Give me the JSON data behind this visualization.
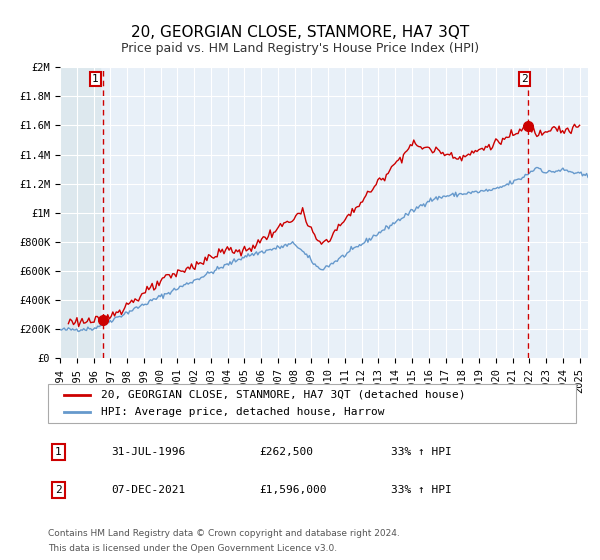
{
  "title": "20, GEORGIAN CLOSE, STANMORE, HA7 3QT",
  "subtitle": "Price paid vs. HM Land Registry's House Price Index (HPI)",
  "red_label": "20, GEORGIAN CLOSE, STANMORE, HA7 3QT (detached house)",
  "blue_label": "HPI: Average price, detached house, Harrow",
  "annotation1_label": "1",
  "annotation1_date": "31-JUL-1996",
  "annotation1_price": "£262,500",
  "annotation1_hpi": "33% ↑ HPI",
  "annotation1_date_num": 1996.58,
  "annotation1_value": 262500,
  "annotation2_label": "2",
  "annotation2_date": "07-DEC-2021",
  "annotation2_price": "£1,596,000",
  "annotation2_hpi": "33% ↑ HPI",
  "annotation2_date_num": 2021.93,
  "annotation2_value": 1596000,
  "ylim": [
    0,
    2000000
  ],
  "xlim_start": 1994.0,
  "xlim_end": 2025.5,
  "yticks": [
    0,
    200000,
    400000,
    600000,
    800000,
    1000000,
    1200000,
    1400000,
    1600000,
    1800000,
    2000000
  ],
  "ytick_labels": [
    "£0",
    "£200K",
    "£400K",
    "£600K",
    "£800K",
    "£1M",
    "£1.2M",
    "£1.4M",
    "£1.6M",
    "£1.8M",
    "£2M"
  ],
  "xticks": [
    1994,
    1995,
    1996,
    1997,
    1998,
    1999,
    2000,
    2001,
    2002,
    2003,
    2004,
    2005,
    2006,
    2007,
    2008,
    2009,
    2010,
    2011,
    2012,
    2013,
    2014,
    2015,
    2016,
    2017,
    2018,
    2019,
    2020,
    2021,
    2022,
    2023,
    2024,
    2025
  ],
  "red_color": "#cc0000",
  "blue_color": "#6699cc",
  "vline_color": "#cc0000",
  "background_plot": "#e8f0f8",
  "background_hatch": "#dde8ee",
  "grid_color": "#ffffff",
  "title_fontsize": 11,
  "subtitle_fontsize": 9,
  "axis_fontsize": 7.5,
  "legend_fontsize": 8,
  "footer_fontsize": 6.5
}
